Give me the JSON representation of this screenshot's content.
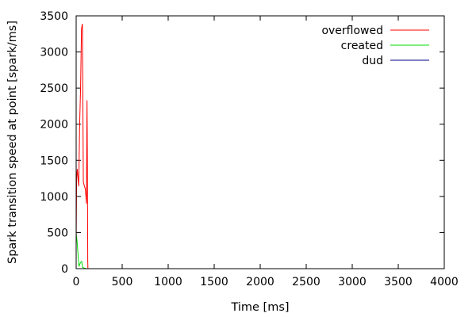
{
  "chart_data": {
    "type": "line",
    "title": "",
    "xlabel": "Time [ms]",
    "ylabel": "Spark transition speed at point [spark/ms]",
    "xlim": [
      0,
      4000
    ],
    "ylim": [
      0,
      3500
    ],
    "xticks": [
      0,
      500,
      1000,
      1500,
      2000,
      2500,
      3000,
      3500,
      4000
    ],
    "yticks": [
      0,
      500,
      1000,
      1500,
      2000,
      2500,
      3000,
      3500
    ],
    "grid": false,
    "legend_position": "top-right",
    "series": [
      {
        "name": "overflowed",
        "color": "#ff0000",
        "x": [
          0,
          5,
          12,
          20,
          28,
          38,
          48,
          58,
          68,
          78,
          88,
          100,
          112,
          118,
          122,
          126,
          128
        ],
        "y": [
          350,
          1250,
          1380,
          1250,
          1140,
          2000,
          2500,
          3320,
          3390,
          1200,
          1150,
          1100,
          900,
          2330,
          1500,
          100,
          0
        ]
      },
      {
        "name": "created",
        "color": "#00dd00",
        "x": [
          0,
          10,
          20,
          30,
          45,
          60,
          70,
          85,
          100,
          110,
          120,
          130
        ],
        "y": [
          480,
          380,
          200,
          30,
          80,
          100,
          20,
          10,
          5,
          0,
          0,
          0
        ]
      },
      {
        "name": "dud",
        "color": "#000080",
        "x": [
          0,
          50,
          100,
          150,
          200,
          250,
          300,
          350,
          400,
          420
        ],
        "y": [
          0,
          0,
          0,
          0,
          0,
          0,
          0,
          0,
          0,
          0
        ]
      }
    ]
  }
}
